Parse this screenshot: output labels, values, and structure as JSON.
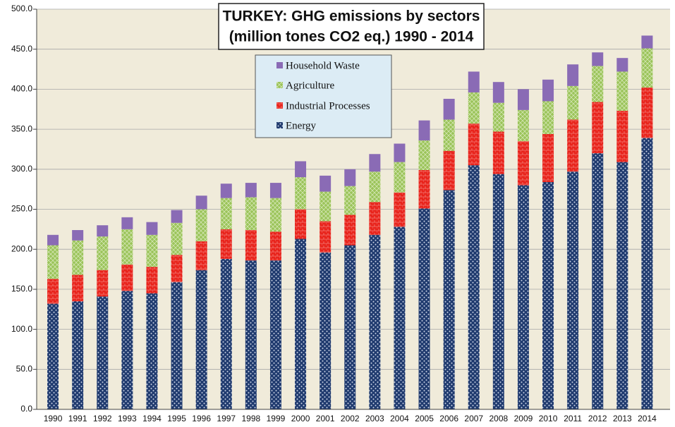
{
  "chart_data": {
    "type": "stacked-bar",
    "title": "TURKEY: GHG emissions by sectors",
    "subtitle": "(million tones CO2 eq.) 1990 - 2014",
    "categories": [
      "1990",
      "1991",
      "1992",
      "1993",
      "1994",
      "1995",
      "1996",
      "1997",
      "1998",
      "1999",
      "2000",
      "2001",
      "2002",
      "2003",
      "2004",
      "2005",
      "2006",
      "2007",
      "2008",
      "2009",
      "2010",
      "2011",
      "2012",
      "2013",
      "2014"
    ],
    "series": [
      {
        "name": "Energy",
        "color": "#1f3a6e",
        "values": [
          132,
          135,
          141,
          148,
          145,
          159,
          174,
          188,
          186,
          186,
          213,
          196,
          205,
          218,
          228,
          251,
          274,
          305,
          294,
          280,
          284,
          297,
          320,
          309,
          339
        ]
      },
      {
        "name": "Industrial Processes",
        "color": "#e8241c",
        "values": [
          31,
          33,
          33,
          33,
          33,
          34,
          36,
          37,
          38,
          36,
          37,
          39,
          38,
          41,
          43,
          48,
          49,
          52,
          53,
          55,
          60,
          65,
          64,
          64,
          63
        ]
      },
      {
        "name": "Agriculture",
        "color": "#9bc45a",
        "values": [
          42,
          43,
          42,
          44,
          40,
          40,
          40,
          39,
          41,
          42,
          40,
          37,
          36,
          38,
          38,
          37,
          39,
          39,
          36,
          39,
          41,
          42,
          45,
          49,
          49
        ]
      },
      {
        "name": "Household Waste",
        "color": "#8a6bb5",
        "values": [
          13,
          13,
          14,
          15,
          16,
          16,
          17,
          18,
          18,
          19,
          20,
          20,
          21,
          22,
          23,
          25,
          26,
          26,
          26,
          26,
          27,
          27,
          17,
          17,
          16
        ]
      }
    ],
    "ylim": [
      0,
      500
    ],
    "yticks": [
      {
        "value": 0,
        "label": "0.0"
      },
      {
        "value": 50,
        "label": "50.0"
      },
      {
        "value": 100,
        "label": "100.0"
      },
      {
        "value": 150,
        "label": "150.0"
      },
      {
        "value": 200,
        "label": "200.0"
      },
      {
        "value": 250,
        "label": "250.0"
      },
      {
        "value": 300,
        "label": "300.0"
      },
      {
        "value": 350,
        "label": "350.0"
      },
      {
        "value": 400,
        "label": "400.0"
      },
      {
        "value": 450,
        "label": "450.0"
      },
      {
        "value": 500,
        "label": "500.0"
      }
    ],
    "grid": true
  }
}
